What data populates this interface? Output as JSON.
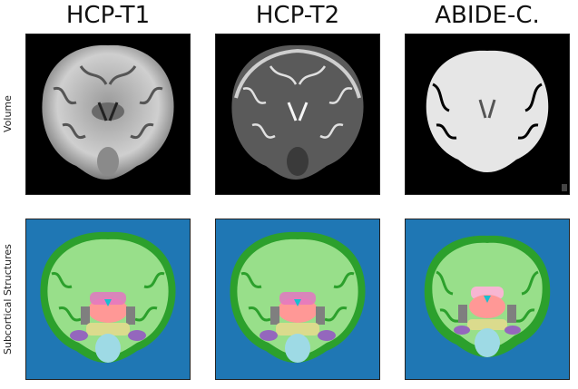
{
  "columns": [
    {
      "title": "HCP-T1"
    },
    {
      "title": "HCP-T2"
    },
    {
      "title": "ABIDE-C."
    }
  ],
  "rows": [
    {
      "label": "Volume"
    },
    {
      "label": "Subcortical Structures"
    }
  ],
  "colors": {
    "seg_background": "#1f77b4",
    "white_matter": "#98df8a",
    "cortex": "#2ca02c",
    "thalamus": "#ff9896",
    "putamen": "#c49c94",
    "pallidum": "#aec7e8",
    "ventricle": "#17becf",
    "caudate": "#e377c2",
    "brainstem": "#9edae5",
    "amygdala": "#9467bd",
    "hippocampus": "#dbdb8d",
    "cerebellum_wm": "#f7b6d2",
    "other": "#7f7f7f"
  }
}
